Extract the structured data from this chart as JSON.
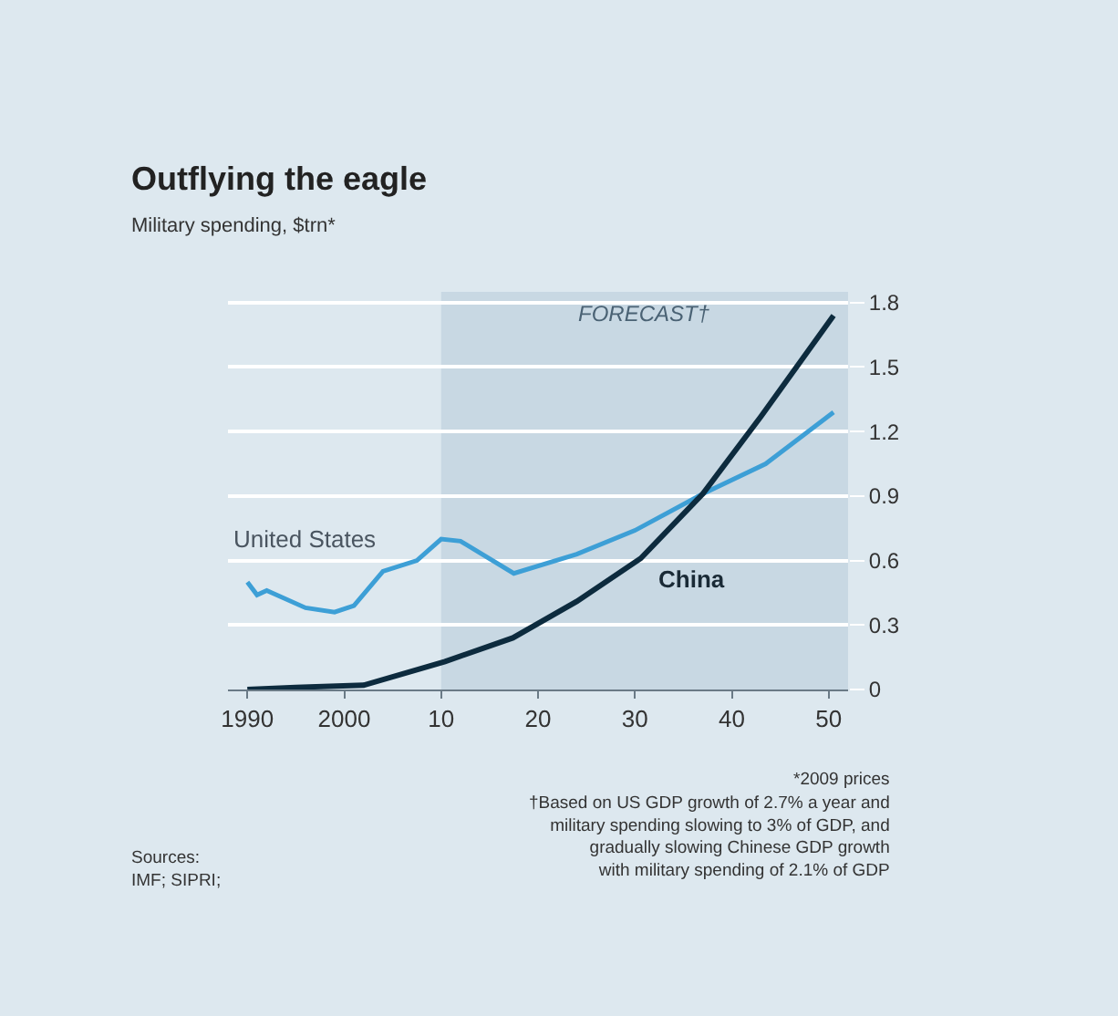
{
  "chart_data": {
    "type": "line",
    "title": "Outflying the eagle",
    "subtitle": "Military spending, $trn*",
    "x": [
      1990,
      1991,
      1992,
      1996,
      1999,
      2001,
      2004,
      2007.5,
      2010,
      2012,
      2017.5,
      2024,
      2030,
      2037,
      2043.5,
      2050.5
    ],
    "series": [
      {
        "name": "United States",
        "color": "#3d9fd6",
        "values": [
          0.5,
          0.44,
          0.46,
          0.38,
          0.36,
          0.39,
          0.55,
          0.6,
          0.7,
          0.69,
          0.54,
          0.63,
          0.74,
          0.91,
          1.05,
          1.29
        ]
      },
      {
        "name": "China",
        "color": "#0d2b3e",
        "x": [
          1990,
          1995,
          2002,
          2010.4,
          2017.4,
          2024,
          2030.6,
          2037,
          2043,
          2050.5
        ],
        "values": [
          0.0,
          0.01,
          0.02,
          0.13,
          0.24,
          0.41,
          0.61,
          0.91,
          1.27,
          1.74
        ]
      }
    ],
    "xlim": [
      1988,
      2052
    ],
    "xticks": [
      1990,
      2000,
      {
        "value": 2010,
        "label": "10"
      },
      {
        "value": 2020,
        "label": "20"
      },
      {
        "value": 2030,
        "label": "30"
      },
      {
        "value": 2040,
        "label": "40"
      },
      {
        "value": 2050,
        "label": "50"
      }
    ],
    "ylim": [
      0,
      1.85
    ],
    "yticks": [
      0,
      0.3,
      0.6,
      0.9,
      1.2,
      1.5,
      1.8
    ],
    "grid": "y",
    "legend": false,
    "marker": "none",
    "line_style": "solid",
    "bands": [
      {
        "axis": "x",
        "from": 2010,
        "to": 2052,
        "label": "FORECAST†",
        "color": "#c8d8e3"
      }
    ],
    "annotations": [
      "*2009 prices",
      "†Based on US GDP growth of 2.7% a year and\nmilitary spending slowing to 3% of GDP, and\ngradually slowing Chinese GDP growth\nwith military spending of 2.1% of GDP",
      "Sources:\nIMF; SIPRI;"
    ]
  }
}
